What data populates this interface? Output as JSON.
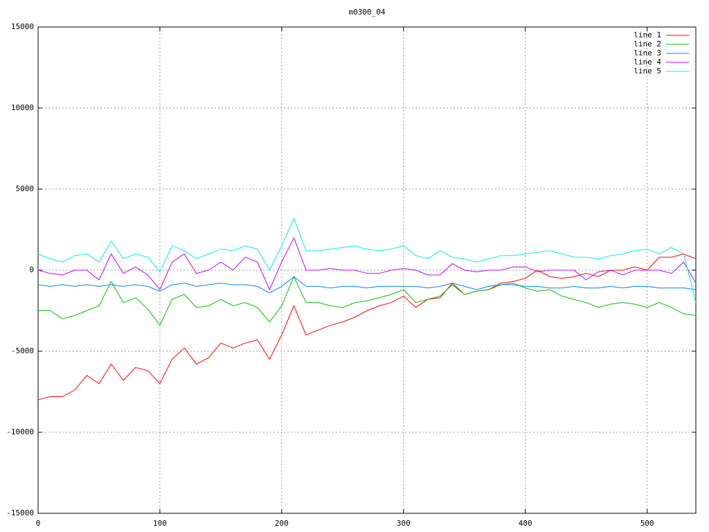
{
  "chart_data": {
    "type": "line",
    "title": "m0300_04",
    "x": [
      0,
      10,
      20,
      30,
      40,
      50,
      60,
      70,
      80,
      90,
      100,
      110,
      120,
      130,
      140,
      150,
      160,
      170,
      180,
      190,
      200,
      210,
      220,
      230,
      240,
      250,
      260,
      270,
      280,
      290,
      300,
      310,
      320,
      330,
      340,
      350,
      360,
      370,
      380,
      390,
      400,
      410,
      420,
      430,
      440,
      450,
      460,
      470,
      480,
      490,
      500,
      510,
      520,
      530,
      540
    ],
    "series": [
      {
        "name": "line 1",
        "color": "#ff0000",
        "values": [
          -8000,
          -7800,
          -7800,
          -7400,
          -6500,
          -7000,
          -5800,
          -6800,
          -6000,
          -6200,
          -7000,
          -5500,
          -4800,
          -5800,
          -5400,
          -4500,
          -4800,
          -4500,
          -4300,
          -5500,
          -4000,
          -2200,
          -4000,
          -3700,
          -3400,
          -3200,
          -2900,
          -2500,
          -2200,
          -2000,
          -1600,
          -2300,
          -1800,
          -1700,
          -800,
          -1500,
          -1300,
          -1200,
          -800,
          -700,
          -500,
          0,
          -400,
          -500,
          -400,
          -200,
          -400,
          0,
          0,
          200,
          0,
          800,
          800,
          1000,
          700
        ]
      },
      {
        "name": "line 2",
        "color": "#00c000",
        "values": [
          -2500,
          -2500,
          -3000,
          -2800,
          -2500,
          -2200,
          -700,
          -2000,
          -1700,
          -2400,
          -3400,
          -1800,
          -1500,
          -2300,
          -2200,
          -1800,
          -2200,
          -2000,
          -2300,
          -3200,
          -2200,
          -400,
          -2000,
          -2000,
          -2200,
          -2300,
          -2000,
          -1900,
          -1700,
          -1500,
          -1200,
          -2000,
          -1800,
          -1600,
          -900,
          -1500,
          -1300,
          -1200,
          -900,
          -800,
          -1100,
          -1300,
          -1200,
          -1600,
          -1800,
          -2000,
          -2300,
          -2100,
          -2000,
          -2100,
          -2300,
          -2000,
          -2300,
          -2700,
          -2800
        ]
      },
      {
        "name": "line 3",
        "color": "#0080ff",
        "values": [
          -900,
          -1000,
          -900,
          -1000,
          -900,
          -1000,
          -900,
          -1000,
          -900,
          -1000,
          -1300,
          -900,
          -800,
          -1000,
          -900,
          -800,
          -900,
          -900,
          -1000,
          -1400,
          -1000,
          -400,
          -1000,
          -1000,
          -1100,
          -1000,
          -1000,
          -1100,
          -1000,
          -1000,
          -1000,
          -1000,
          -1100,
          -1000,
          -800,
          -1000,
          -1200,
          -1000,
          -900,
          -900,
          -1000,
          -1000,
          -1100,
          -1100,
          -1000,
          -1100,
          -1100,
          -1000,
          -1100,
          -1000,
          -1000,
          -1100,
          -1100,
          -1100,
          -1200
        ]
      },
      {
        "name": "line 4",
        "color": "#c000ff",
        "values": [
          0,
          -200,
          -300,
          0,
          0,
          -600,
          1000,
          -200,
          200,
          -300,
          -1200,
          500,
          1000,
          -200,
          0,
          500,
          0,
          800,
          500,
          -1200,
          500,
          2000,
          0,
          0,
          100,
          0,
          0,
          -200,
          -200,
          0,
          100,
          0,
          -300,
          -300,
          400,
          0,
          -100,
          0,
          0,
          200,
          200,
          -100,
          0,
          0,
          0,
          -600,
          -100,
          0,
          -300,
          0,
          0,
          0,
          -200,
          500,
          -800
        ]
      },
      {
        "name": "line 5",
        "color": "#00eeee",
        "values": [
          1000,
          700,
          500,
          900,
          1000,
          500,
          1800,
          700,
          1000,
          800,
          -100,
          1500,
          1200,
          700,
          1000,
          1300,
          1200,
          1500,
          1300,
          0,
          1500,
          3200,
          1200,
          1200,
          1300,
          1400,
          1500,
          1300,
          1200,
          1300,
          1500,
          900,
          700,
          1200,
          800,
          700,
          500,
          700,
          900,
          900,
          1000,
          1100,
          1200,
          1000,
          800,
          800,
          700,
          900,
          1000,
          1200,
          1300,
          1000,
          1400,
          1000,
          -2000
        ]
      }
    ],
    "xlim": [
      0,
      540
    ],
    "xticks": [
      0,
      100,
      200,
      300,
      400,
      500
    ],
    "ylim": [
      -15000,
      15000
    ],
    "yticks": [
      -15000,
      -10000,
      -5000,
      0,
      5000,
      10000,
      15000
    ],
    "grid": true,
    "legend": "top-right"
  }
}
